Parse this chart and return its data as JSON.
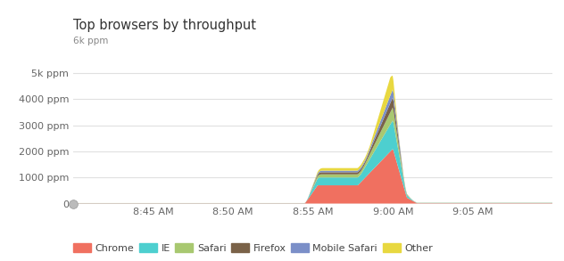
{
  "title": "Top browsers by throughput",
  "ylabel_top": "6k ppm",
  "yticks": [
    0,
    1000,
    2000,
    3000,
    4000,
    5000
  ],
  "ylim": [
    0,
    6000
  ],
  "xtick_labels": [
    "8:45 AM",
    "8:50 AM",
    "8:55 AM",
    "9:00 AM",
    "9:05 AM"
  ],
  "colors": {
    "Chrome": "#F07060",
    "IE": "#4DCFCF",
    "Safari": "#A8C870",
    "Firefox": "#7A6248",
    "Mobile Safari": "#7B8FC8",
    "Other": "#E8D840"
  },
  "legend_order": [
    "Chrome",
    "IE",
    "Safari",
    "Firefox",
    "Mobile Safari",
    "Other"
  ],
  "background": "#ffffff",
  "grid_color": "#e0e0e0"
}
